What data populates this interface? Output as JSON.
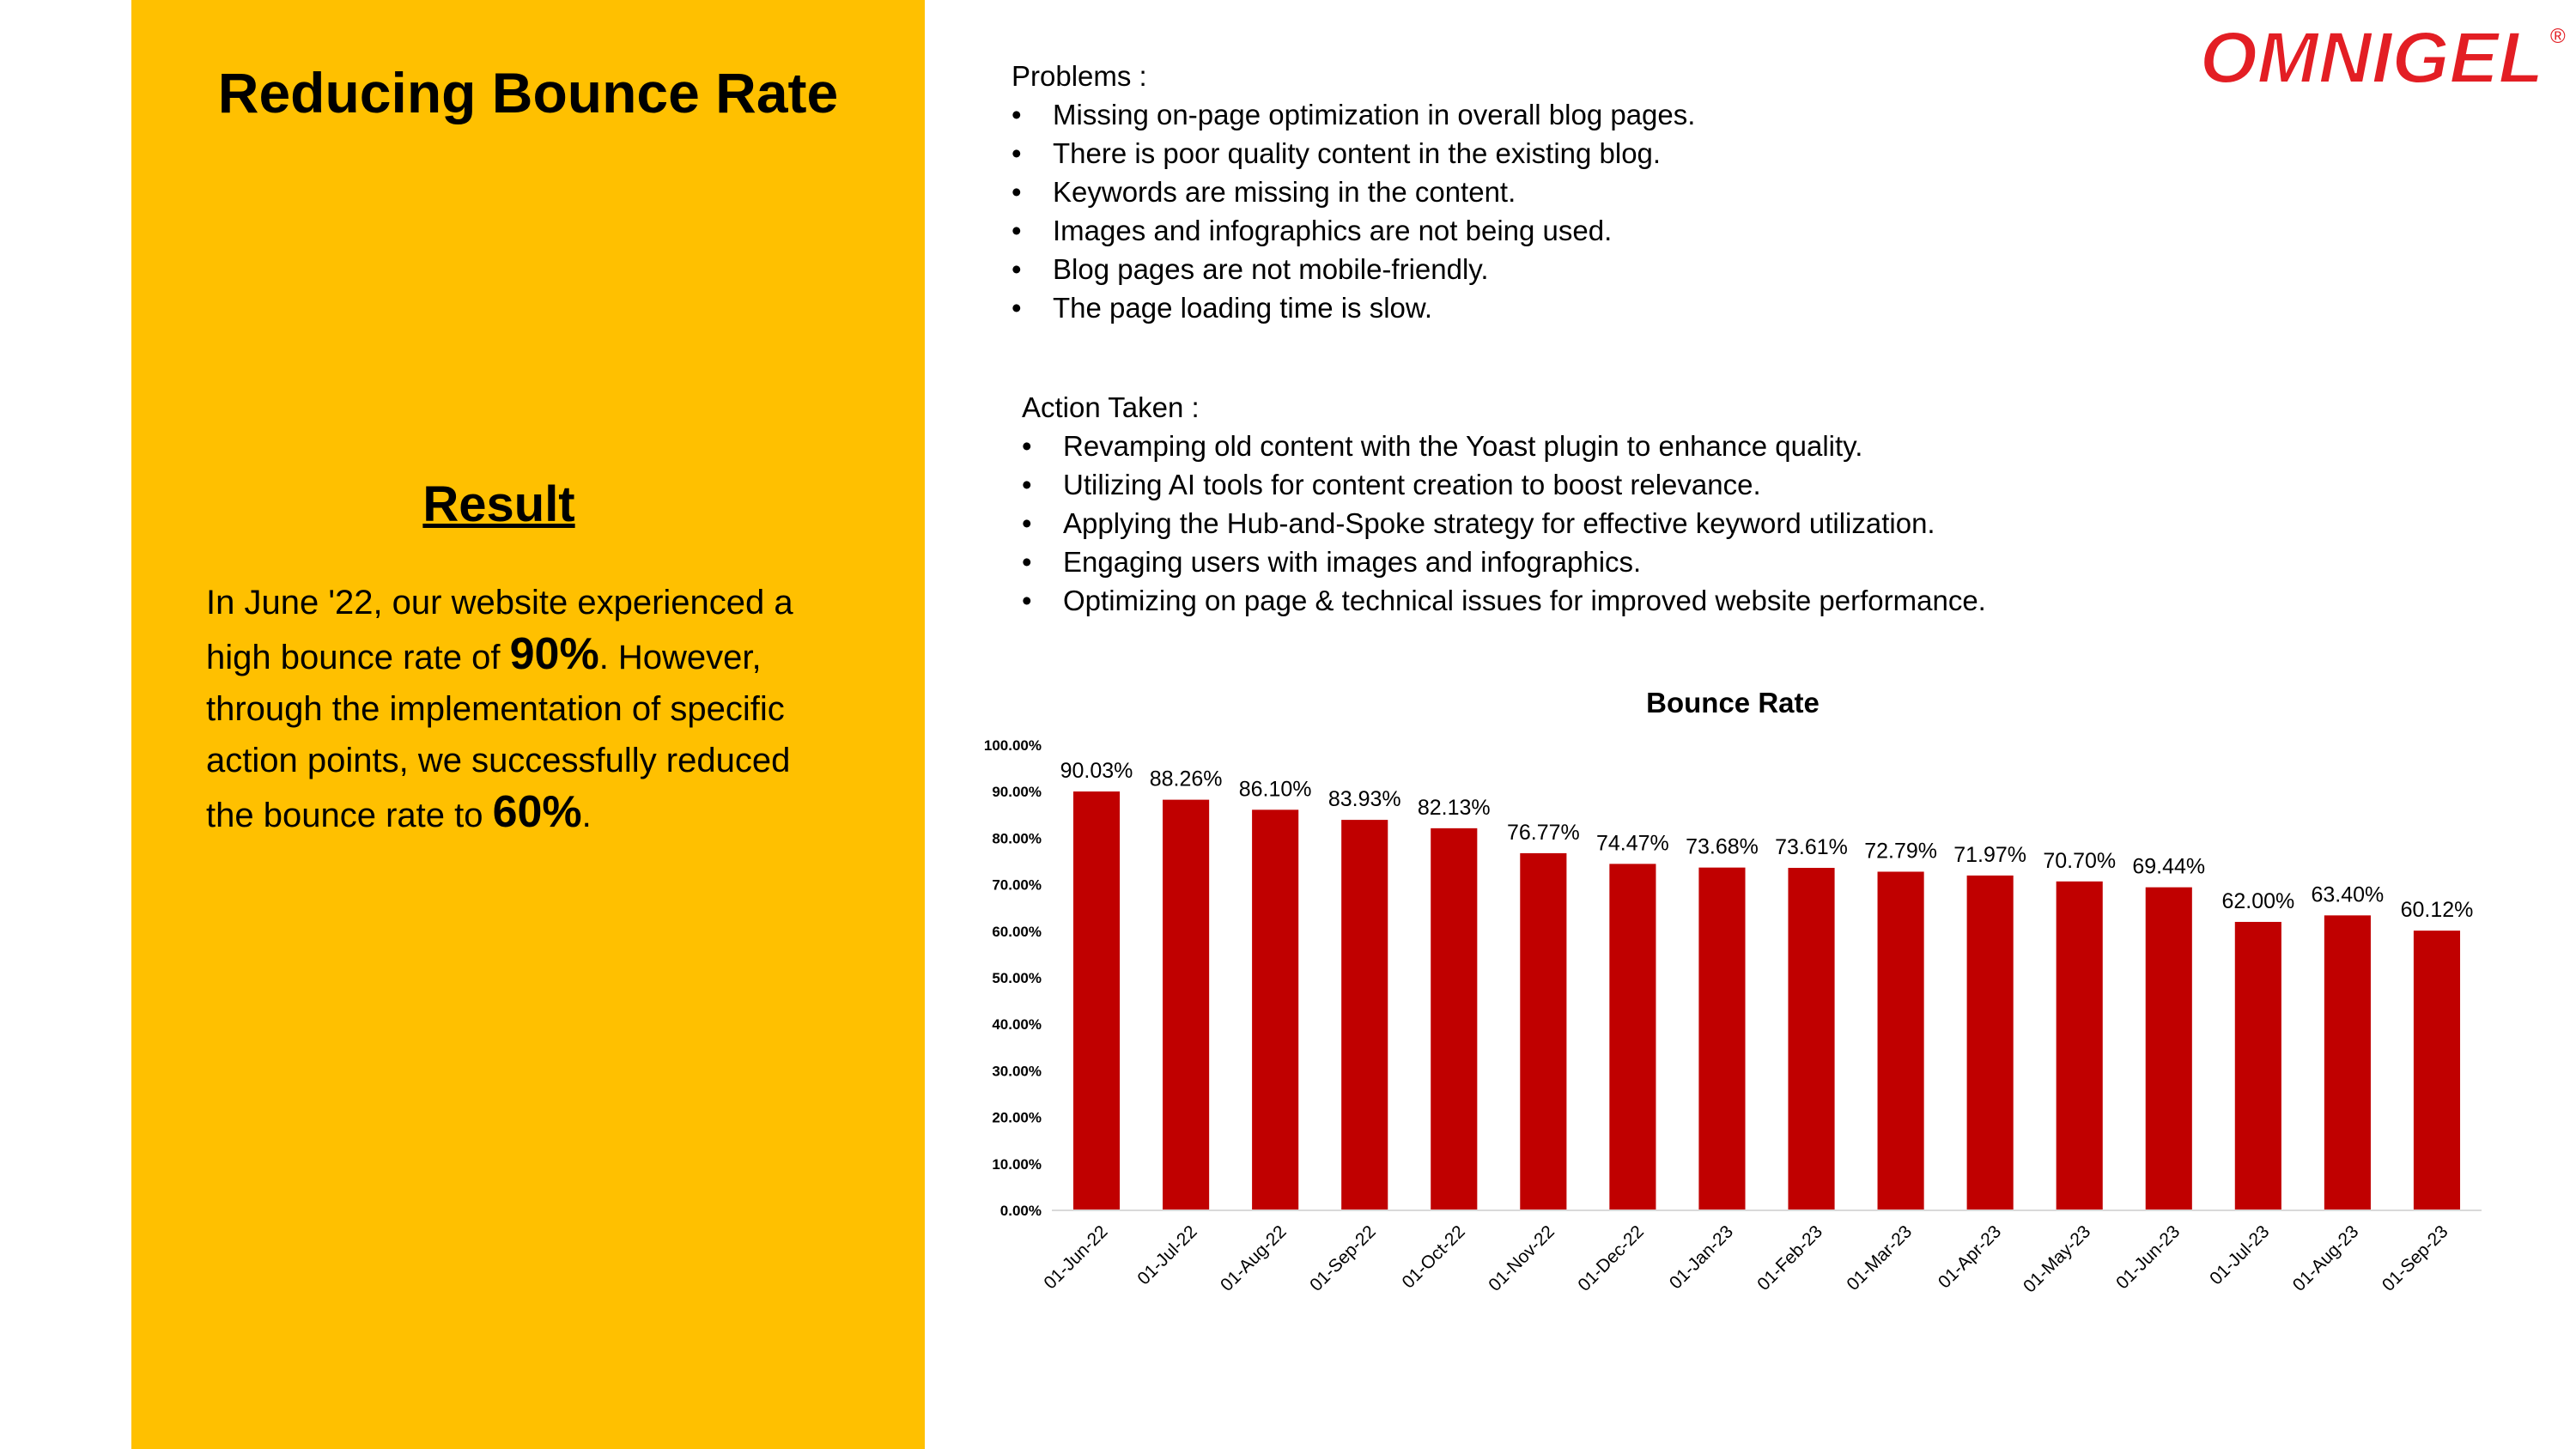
{
  "left_panel": {
    "title": "Reducing Bounce Rate",
    "result_heading": "Result",
    "result_text": {
      "p1": "In June '22, our website experienced a",
      "p2": "high bounce rate of",
      "p3": "90%",
      "p4": ". However,",
      "p5": "through the implementation of specific",
      "p6": "action points, we successfully reduced",
      "p7": "the bounce rate to",
      "p8": "60%",
      "p9": "."
    }
  },
  "logo": {
    "text": "OMNIGEL",
    "registered": "®",
    "color": "#E31E24"
  },
  "problems": {
    "heading": "Problems :",
    "items": [
      "Missing on-page optimization in overall blog pages.",
      "There is poor quality content in the existing blog.",
      "Keywords are missing in the content.",
      "Images and infographics are not being used.",
      "Blog pages are not mobile-friendly.",
      "The page loading time is slow."
    ]
  },
  "actions": {
    "heading": "Action Taken :",
    "items": [
      "Revamping old content with the Yoast plugin to enhance quality.",
      "Utilizing AI tools for content creation to boost relevance.",
      "Applying the Hub-and-Spoke strategy for effective keyword utilization.",
      "Engaging users with images and infographics.",
      "Optimizing on page & technical issues for improved website performance."
    ]
  },
  "bullet_glyph": "•",
  "colors": {
    "panel": "#FFC000",
    "bar": "#C00000"
  },
  "chart_data": {
    "type": "bar",
    "title": "Bounce Rate",
    "xlabel": "",
    "ylabel": "",
    "categories": [
      "01-Jun-22",
      "01-Jul-22",
      "01-Aug-22",
      "01-Sep-22",
      "01-Oct-22",
      "01-Nov-22",
      "01-Dec-22",
      "01-Jan-23",
      "01-Feb-23",
      "01-Mar-23",
      "01-Apr-23",
      "01-May-23",
      "01-Jun-23",
      "01-Jul-23",
      "01-Aug-23",
      "01-Sep-23"
    ],
    "values": [
      90.03,
      88.26,
      86.1,
      83.93,
      82.13,
      76.77,
      74.47,
      73.68,
      73.61,
      72.79,
      71.97,
      70.7,
      69.44,
      62.0,
      63.4,
      60.12
    ],
    "data_labels": [
      "90.03%",
      "88.26%",
      "86.10%",
      "83.93%",
      "82.13%",
      "76.77%",
      "74.47%",
      "73.68%",
      "73.61%",
      "72.79%",
      "71.97%",
      "70.70%",
      "69.44%",
      "62.00%",
      "63.40%",
      "60.12%"
    ],
    "ylim": [
      0,
      100
    ],
    "yticks": [
      "0.00%",
      "10.00%",
      "20.00%",
      "30.00%",
      "40.00%",
      "50.00%",
      "60.00%",
      "70.00%",
      "80.00%",
      "90.00%",
      "100.00%"
    ],
    "grid": false,
    "legend": "none"
  }
}
